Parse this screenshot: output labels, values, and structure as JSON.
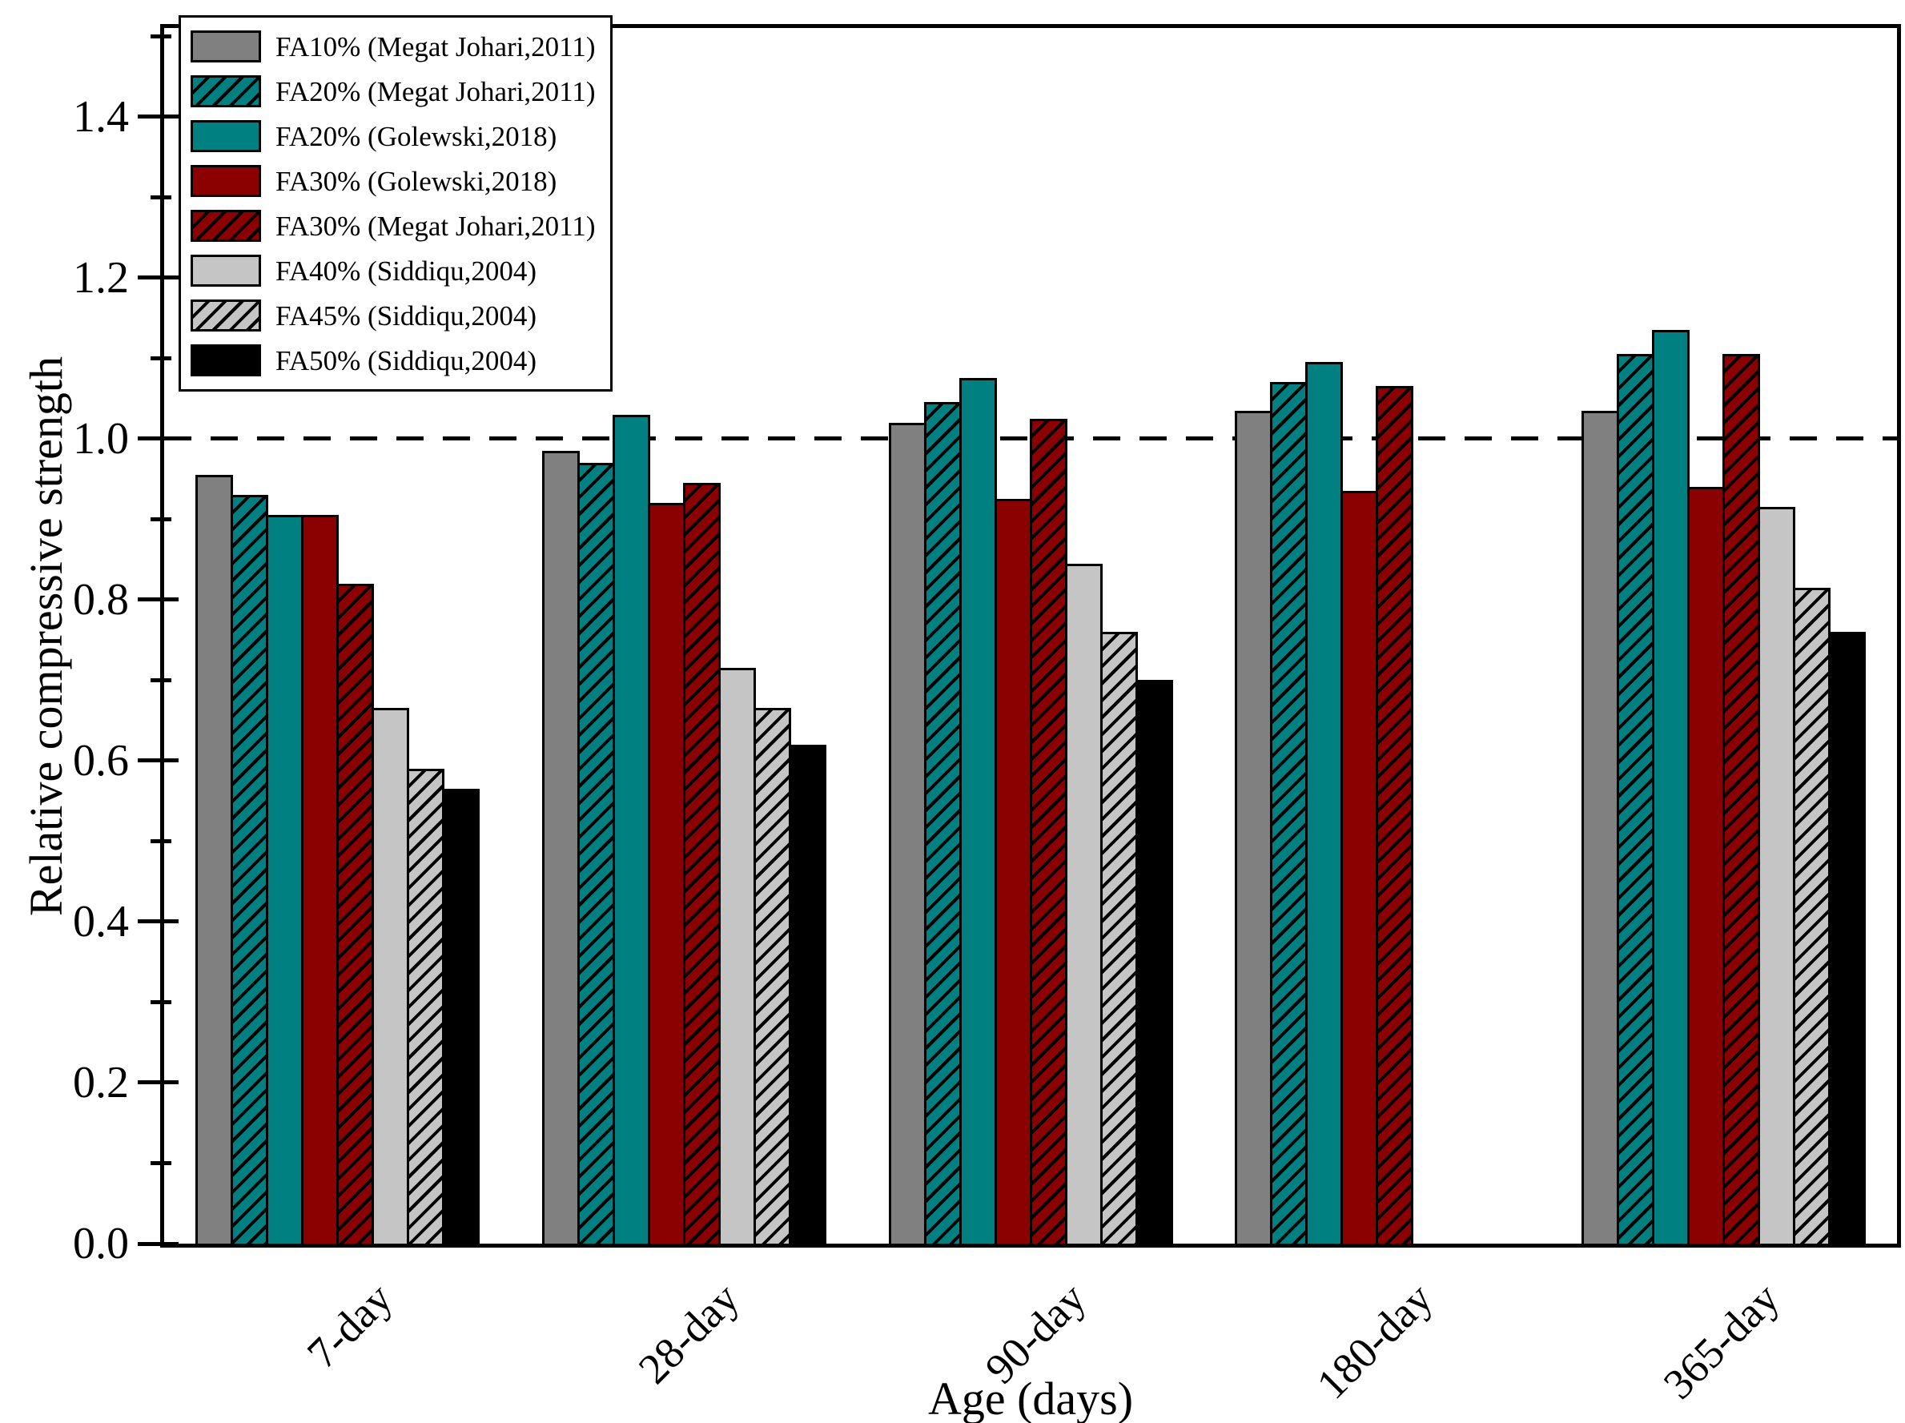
{
  "figure": {
    "background": "#ffffff",
    "frame_color": "#000000"
  },
  "chart_data": {
    "type": "bar",
    "title": "",
    "xlabel": "Age (days)",
    "ylabel": "Relative compressive strength",
    "ylim": [
      0,
      1.51
    ],
    "ytick_major_step": 0.2,
    "ytick_minor_step": 0.1,
    "ytick_labels": [
      "0.0",
      "0.2",
      "0.4",
      "0.6",
      "0.8",
      "1.0",
      "1.2",
      "1.4"
    ],
    "grid": false,
    "legend_position": "top-left",
    "reference_line": {
      "y": 1.0,
      "style": "dashed",
      "color": "#000000"
    },
    "categories": [
      "7-day",
      "28-day",
      "90-day",
      "180-day",
      "365-day"
    ],
    "series": [
      {
        "name": "FA10% (Megat Johari,2011)",
        "color": "#808080",
        "hatch": false,
        "values": [
          0.955,
          0.985,
          1.02,
          1.035,
          1.035
        ]
      },
      {
        "name": "FA20% (Megat Johari,2011)",
        "color": "#008080",
        "hatch": true,
        "values": [
          0.93,
          0.97,
          1.045,
          1.07,
          1.105
        ]
      },
      {
        "name": "FA20% (Golewski,2018)",
        "color": "#008080",
        "hatch": false,
        "values": [
          0.905,
          1.03,
          1.075,
          1.095,
          1.135
        ]
      },
      {
        "name": "FA30% (Golewski,2018)",
        "color": "#8B0000",
        "hatch": false,
        "values": [
          0.905,
          0.92,
          0.925,
          0.935,
          0.94
        ]
      },
      {
        "name": "FA30% (Megat Johari,2011)",
        "color": "#8B0000",
        "hatch": true,
        "values": [
          0.82,
          0.945,
          1.025,
          1.065,
          1.105
        ]
      },
      {
        "name": "FA40% (Siddiqu,2004)",
        "color": "#C5C5C5",
        "hatch": false,
        "values": [
          0.665,
          0.715,
          0.845,
          null,
          0.915
        ]
      },
      {
        "name": "FA45% (Siddiqu,2004)",
        "color": "#C5C5C5",
        "hatch": true,
        "values": [
          0.59,
          0.665,
          0.76,
          null,
          0.815
        ]
      },
      {
        "name": "FA50% (Siddiqu,2004)",
        "color": "#000000",
        "hatch": false,
        "values": [
          0.565,
          0.62,
          0.7,
          null,
          0.76
        ]
      }
    ]
  }
}
